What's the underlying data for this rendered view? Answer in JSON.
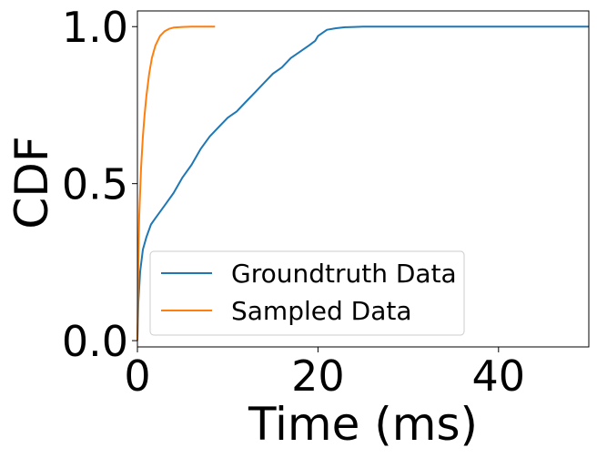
{
  "chart_data": {
    "type": "line",
    "xlabel": "Time (ms)",
    "ylabel": "CDF",
    "xlim": [
      0,
      50
    ],
    "ylim": [
      -0.02,
      1.05
    ],
    "xticks": [
      0,
      20,
      40
    ],
    "xtick_labels": [
      "0",
      "20",
      "40"
    ],
    "yticks": [
      0.0,
      0.5,
      1.0
    ],
    "ytick_labels": [
      "0.0",
      "0.5",
      "1.0"
    ],
    "grid": false,
    "legend_position": "bottom-left",
    "series": [
      {
        "name": "Groundtruth Data",
        "color": "#1f77b4",
        "x": [
          0,
          0.1,
          0.3,
          0.6,
          1.0,
          1.5,
          2.0,
          3.0,
          4.0,
          5.0,
          6.0,
          7.0,
          8.0,
          9.0,
          10.0,
          11.0,
          12.0,
          13.0,
          14.0,
          15.0,
          16.0,
          17.0,
          18.0,
          19.0,
          19.7,
          20.0,
          20.5,
          21.0,
          22.0,
          23.0,
          24.0,
          25.0,
          30.0,
          40.0,
          50.0
        ],
        "y": [
          0.0,
          0.12,
          0.22,
          0.29,
          0.33,
          0.37,
          0.39,
          0.43,
          0.47,
          0.52,
          0.56,
          0.61,
          0.65,
          0.68,
          0.71,
          0.73,
          0.76,
          0.79,
          0.82,
          0.85,
          0.87,
          0.9,
          0.92,
          0.94,
          0.955,
          0.97,
          0.98,
          0.99,
          0.995,
          0.998,
          0.999,
          1.0,
          1.0,
          1.0,
          1.0
        ]
      },
      {
        "name": "Sampled Data",
        "color": "#ff7f0e",
        "x": [
          0,
          0.1,
          0.2,
          0.4,
          0.6,
          0.8,
          1.0,
          1.3,
          1.6,
          2.0,
          2.5,
          3.0,
          3.5,
          4.0,
          5.0,
          6.0,
          7.0,
          8.6
        ],
        "y": [
          0.0,
          0.25,
          0.4,
          0.55,
          0.65,
          0.72,
          0.78,
          0.85,
          0.9,
          0.94,
          0.97,
          0.985,
          0.993,
          0.997,
          0.999,
          1.0,
          1.0,
          1.0
        ]
      }
    ]
  }
}
